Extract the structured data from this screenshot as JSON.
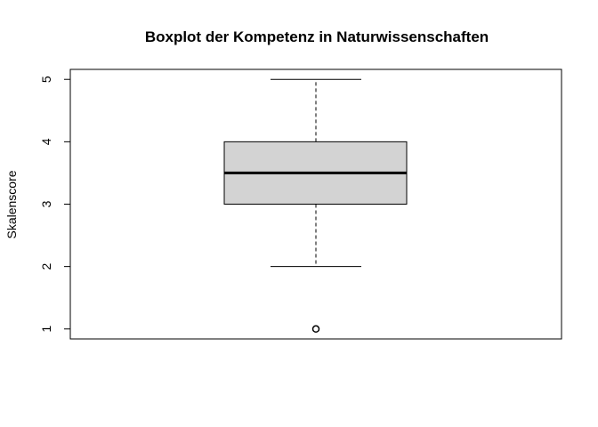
{
  "chart_data": {
    "type": "boxplot",
    "title": "Boxplot der Kompetenz in Naturwissenschaften",
    "xlabel": "",
    "ylabel": "Skalenscore",
    "ylim": [
      0.84,
      5.16
    ],
    "yticks": [
      "1",
      "2",
      "3",
      "4",
      "5"
    ],
    "series": [
      {
        "whisker_low": 2,
        "q1": 3,
        "median": 3.5,
        "q3": 4,
        "whisker_high": 5,
        "outliers": [
          1
        ]
      }
    ],
    "colors": {
      "box_fill": "#d3d3d3",
      "stroke": "#000000"
    },
    "grid": false
  }
}
